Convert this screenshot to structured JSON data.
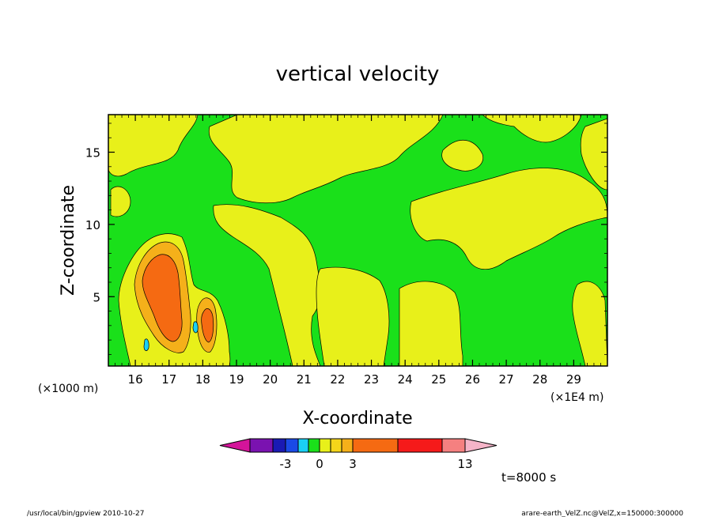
{
  "chart_data": {
    "type": "heatmap",
    "title": "vertical velocity",
    "xlabel": "X-coordinate",
    "ylabel": "Z-coordinate",
    "x_unit_left": "(×1000 m)",
    "x_unit_right": "(×1E4 m)",
    "x_ticks": [
      "16",
      "17",
      "18",
      "19",
      "20",
      "21",
      "22",
      "23",
      "24",
      "25",
      "26",
      "27",
      "28",
      "29"
    ],
    "y_ticks": [
      "5",
      "10",
      "15"
    ],
    "xlim": [
      15.2,
      30.0
    ],
    "ylim": [
      0.2,
      17.6
    ],
    "grid": false,
    "colorbar": {
      "tick_labels": [
        "-3",
        "0",
        "3",
        "13"
      ],
      "colors": [
        "#d4149a",
        "#7a12b0",
        "#1a1ab4",
        "#1a4ae6",
        "#1ad0f5",
        "#1ae01a",
        "#e8f01a",
        "#f5d51a",
        "#f5b01a",
        "#f56a12",
        "#f51a1a",
        "#f58080",
        "#f5b4c8"
      ]
    },
    "time_label": "t=8000 s",
    "footer_left": "/usr/local/bin/gpview  2010-10-27",
    "footer_right": "arare-earth_VelZ.nc@VelZ,x=150000:300000"
  },
  "colors": {
    "negative": "#1ae01a",
    "positive": "#e8f01a",
    "weak_orange": "#f5b01a",
    "strong_orange": "#f56a12",
    "cyan": "#1ad0f5"
  }
}
